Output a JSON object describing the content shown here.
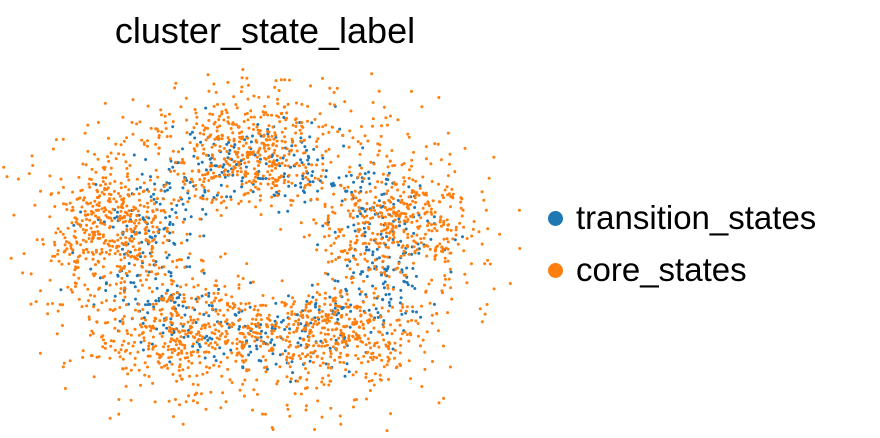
{
  "chart_data": {
    "type": "scatter",
    "title": "cluster_state_label",
    "xlabel": "",
    "ylabel": "",
    "axes_visible": false,
    "grid": false,
    "legend_position": "right",
    "series": [
      {
        "name": "transition_states",
        "color": "#1f77b4",
        "point_count": 700
      },
      {
        "name": "core_states",
        "color": "#ff7f0e",
        "point_count": 2500
      }
    ]
  }
}
